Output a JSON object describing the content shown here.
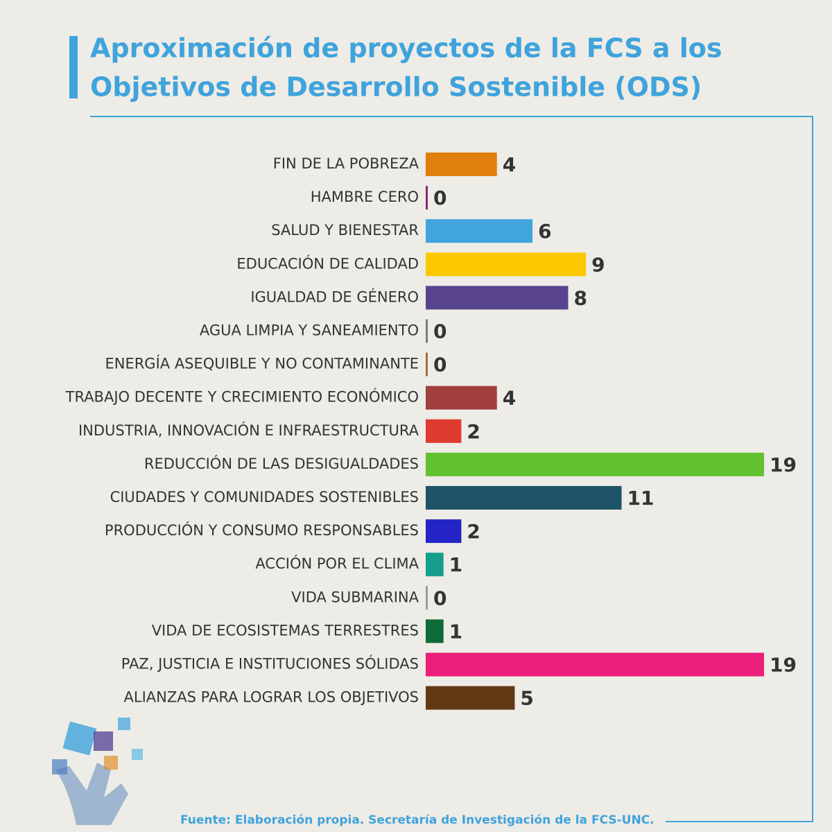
{
  "chart_data": {
    "type": "bar",
    "orientation": "horizontal",
    "title": [
      "Aproximación de proyectos de la FCS a los",
      "Objetivos de Desarrollo Sostenible (ODS)"
    ],
    "categories": [
      "FIN DE LA POBREZA",
      "HAMBRE CERO",
      "SALUD Y BIENESTAR",
      "EDUCACIÓN DE CALIDAD",
      "IGUALDAD DE GÉNERO",
      "AGUA LIMPIA Y SANEAMIENTO",
      "ENERGÍA ASEQUIBLE Y NO CONTAMINANTE",
      "TRABAJO DECENTE Y CRECIMIENTO ECONÓMICO",
      "INDUSTRIA, INNOVACIÓN E INFRAESTRUCTURA",
      "REDUCCIÓN DE LAS DESIGUALDADES",
      "CIUDADES Y COMUNIDADES SOSTENIBLES",
      "PRODUCCIÓN Y CONSUMO RESPONSABLES",
      "ACCIÓN POR EL CLIMA",
      "VIDA SUBMARINA",
      "VIDA DE ECOSISTEMAS TERRESTRES",
      "PAZ, JUSTICIA E INSTITUCIONES SÓLIDAS",
      "ALIANZAS PARA LOGRAR LOS OBJETIVOS"
    ],
    "values": [
      4,
      0,
      6,
      9,
      8,
      0,
      0,
      4,
      2,
      19,
      11,
      2,
      1,
      0,
      1,
      19,
      5
    ],
    "colors": [
      "#e07f0c",
      "#8b2a6e",
      "#41a5dc",
      "#fcc800",
      "#58448f",
      "#7a7a7a",
      "#a0703a",
      "#a23f3f",
      "#de3a2d",
      "#62c12f",
      "#1f5468",
      "#2424c7",
      "#159e8c",
      "#9a9a9a",
      "#0e6a36",
      "#ec1f7b",
      "#633815"
    ],
    "source": "Fuente: Elaboración propia. Secretaría de Investigación de la FCS-UNC."
  }
}
